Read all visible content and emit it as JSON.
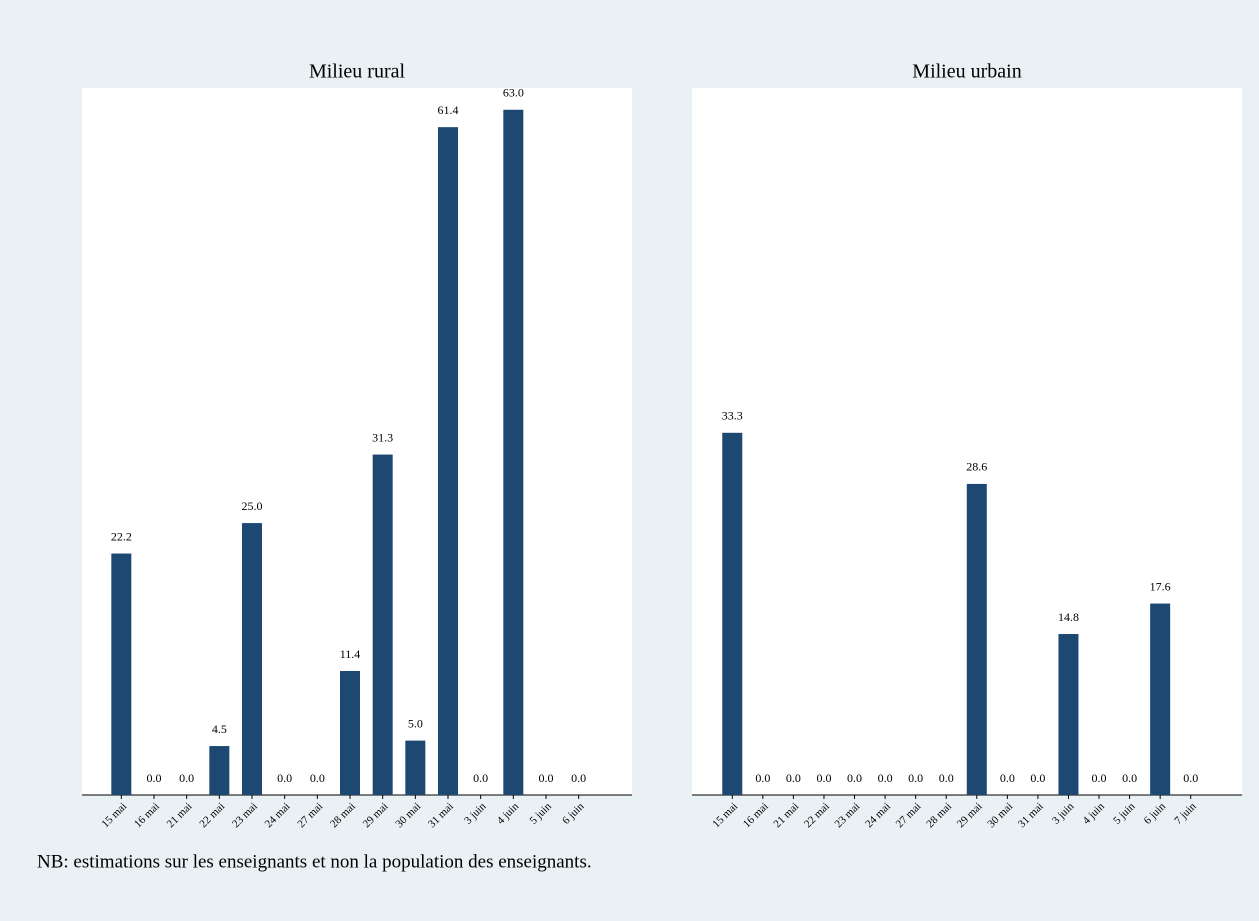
{
  "chart_data": [
    {
      "type": "bar",
      "title": "Milieu rural",
      "color": "#1d4871",
      "ylim": [
        0,
        65
      ],
      "categories": [
        "15 mai",
        "16 mai",
        "21 mai",
        "22 mai",
        "23 mai",
        "24 mai",
        "27 mai",
        "28 mai",
        "29 mai",
        "30 mai",
        "31 mai",
        "3 juin",
        "4 juin",
        "5 juin",
        "6 juin"
      ],
      "values": [
        22.2,
        0,
        0,
        4.5,
        25,
        0,
        0,
        11.4,
        31.3,
        5,
        61.4,
        0,
        63,
        0,
        0
      ],
      "value_labels": [
        "22.2",
        "0.0",
        "0.0",
        "4.5",
        "25.0",
        "0.0",
        "0.0",
        "11.4",
        "31.3",
        "5.0",
        "61.4",
        "0.0",
        "63.0",
        "0.0",
        "0.0"
      ]
    },
    {
      "type": "bar",
      "title": "Milieu urbain",
      "color": "#1d4871",
      "ylim": [
        0,
        65
      ],
      "categories": [
        "15 mai",
        "16 mai",
        "21 mai",
        "22 mai",
        "23 mai",
        "24 mai",
        "27 mai",
        "28 mai",
        "29 mai",
        "30 mai",
        "31 mai",
        "3 juin",
        "4 juin",
        "5 juin",
        "6 juin",
        "7 juin"
      ],
      "values": [
        33.3,
        0,
        0,
        0,
        0,
        0,
        0,
        0,
        28.6,
        0,
        0,
        14.8,
        0,
        0,
        17.6,
        0
      ],
      "value_labels": [
        "33.3",
        "0.0",
        "0.0",
        "0.0",
        "0.0",
        "0.0",
        "0.0",
        "0.0",
        "28.6",
        "0.0",
        "0.0",
        "14.8",
        "0.0",
        "0.0",
        "17.6",
        "0.0"
      ]
    }
  ],
  "note": "NB: estimations sur les enseignants et non la population des enseignants."
}
